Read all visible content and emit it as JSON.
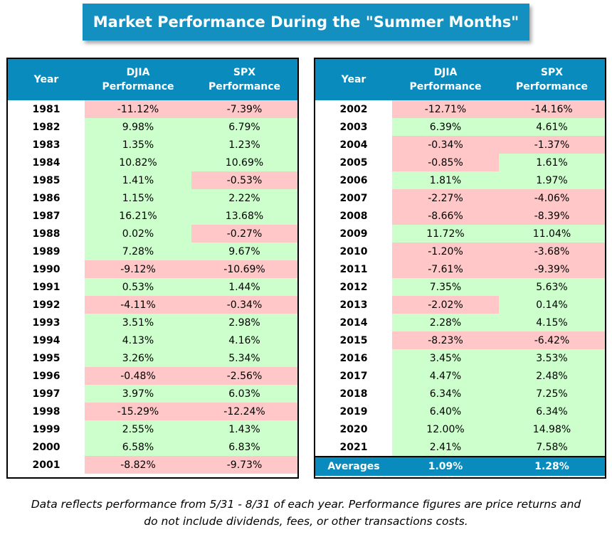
{
  "title": "Market Performance During the \"Summer Months\"",
  "columns": {
    "year": "Year",
    "djia_l1": "DJIA",
    "djia_l2": "Performance",
    "spx_l1": "SPX",
    "spx_l2": "Performance"
  },
  "averages": {
    "label": "Averages",
    "djia": "1.09%",
    "spx": "1.28%"
  },
  "footnote_line1": "Data reflects performance from 5/31 - 8/31 of each year. Performance figures are price returns and",
  "footnote_line2": "do not include dividends, fees, or other transactions costs.",
  "colors": {
    "header": "#0a8bbd",
    "positive": "#ccffcc",
    "negative": "#ffc7c7"
  },
  "chart_data": {
    "type": "table",
    "title": "Market Performance During the \"Summer Months\"",
    "headers": [
      "Year",
      "DJIA Performance",
      "SPX Performance"
    ],
    "rows": [
      {
        "year": "1981",
        "djia": "-11.12%",
        "spx": "-7.39%"
      },
      {
        "year": "1982",
        "djia": "9.98%",
        "spx": "6.79%"
      },
      {
        "year": "1983",
        "djia": "1.35%",
        "spx": "1.23%"
      },
      {
        "year": "1984",
        "djia": "10.82%",
        "spx": "10.69%"
      },
      {
        "year": "1985",
        "djia": "1.41%",
        "spx": "-0.53%"
      },
      {
        "year": "1986",
        "djia": "1.15%",
        "spx": "2.22%"
      },
      {
        "year": "1987",
        "djia": "16.21%",
        "spx": "13.68%"
      },
      {
        "year": "1988",
        "djia": "0.02%",
        "spx": "-0.27%"
      },
      {
        "year": "1989",
        "djia": "7.28%",
        "spx": "9.67%"
      },
      {
        "year": "1990",
        "djia": "-9.12%",
        "spx": "-10.69%"
      },
      {
        "year": "1991",
        "djia": "0.53%",
        "spx": "1.44%"
      },
      {
        "year": "1992",
        "djia": "-4.11%",
        "spx": "-0.34%"
      },
      {
        "year": "1993",
        "djia": "3.51%",
        "spx": "2.98%"
      },
      {
        "year": "1994",
        "djia": "4.13%",
        "spx": "4.16%"
      },
      {
        "year": "1995",
        "djia": "3.26%",
        "spx": "5.34%"
      },
      {
        "year": "1996",
        "djia": "-0.48%",
        "spx": "-2.56%"
      },
      {
        "year": "1997",
        "djia": "3.97%",
        "spx": "6.03%"
      },
      {
        "year": "1998",
        "djia": "-15.29%",
        "spx": "-12.24%"
      },
      {
        "year": "1999",
        "djia": "2.55%",
        "spx": "1.43%"
      },
      {
        "year": "2000",
        "djia": "6.58%",
        "spx": "6.83%"
      },
      {
        "year": "2001",
        "djia": "-8.82%",
        "spx": "-9.73%"
      },
      {
        "year": "2002",
        "djia": "-12.71%",
        "spx": "-14.16%"
      },
      {
        "year": "2003",
        "djia": "6.39%",
        "spx": "4.61%"
      },
      {
        "year": "2004",
        "djia": "-0.34%",
        "spx": "-1.37%"
      },
      {
        "year": "2005",
        "djia": "-0.85%",
        "spx": "1.61%"
      },
      {
        "year": "2006",
        "djia": "1.81%",
        "spx": "1.97%"
      },
      {
        "year": "2007",
        "djia": "-2.27%",
        "spx": "-4.06%"
      },
      {
        "year": "2008",
        "djia": "-8.66%",
        "spx": "-8.39%"
      },
      {
        "year": "2009",
        "djia": "11.72%",
        "spx": "11.04%"
      },
      {
        "year": "2010",
        "djia": "-1.20%",
        "spx": "-3.68%"
      },
      {
        "year": "2011",
        "djia": "-7.61%",
        "spx": "-9.39%"
      },
      {
        "year": "2012",
        "djia": "7.35%",
        "spx": "5.63%"
      },
      {
        "year": "2013",
        "djia": "-2.02%",
        "spx": "0.14%"
      },
      {
        "year": "2014",
        "djia": "2.28%",
        "spx": "4.15%"
      },
      {
        "year": "2015",
        "djia": "-8.23%",
        "spx": "-6.42%"
      },
      {
        "year": "2016",
        "djia": "3.45%",
        "spx": "3.53%"
      },
      {
        "year": "2017",
        "djia": "4.47%",
        "spx": "2.48%"
      },
      {
        "year": "2018",
        "djia": "6.34%",
        "spx": "7.25%"
      },
      {
        "year": "2019",
        "djia": "6.40%",
        "spx": "6.34%"
      },
      {
        "year": "2020",
        "djia": "12.00%",
        "spx": "14.98%"
      },
      {
        "year": "2021",
        "djia": "2.41%",
        "spx": "7.58%"
      }
    ]
  }
}
